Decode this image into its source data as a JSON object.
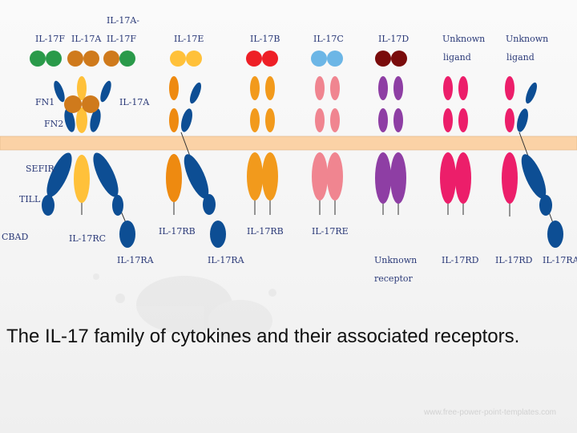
{
  "colors": {
    "green": "#2a9a4a",
    "il17a_orange": "#cf7a1c",
    "yellow": "#ffc13a",
    "orange": "#ee8a10",
    "orange_bright": "#f29a1c",
    "red": "#ee1f26",
    "light_blue": "#6cb6e6",
    "dark_red": "#7a0c0c",
    "pink": "#f08590",
    "purple": "#8e3ea4",
    "magenta": "#ec1e6a",
    "navy": "#0d4e94",
    "membrane": "#fbd2a6"
  },
  "labels": {
    "il17f_left": "IL-17F",
    "il17a_top": "IL-17A",
    "il17af_line1": "IL-17A-",
    "il17af_line2": "IL-17F",
    "il17e": "IL-17E",
    "il17b": "IL-17B",
    "il17c": "IL-17C",
    "il17d": "IL-17D",
    "unknown_ligand1_line1": "Unknown",
    "unknown_ligand1_line2": "ligand",
    "unknown_ligand2_line1": "Unknown",
    "unknown_ligand2_line2": "ligand",
    "fn1": "FN1",
    "fn2": "FN2",
    "il17a_side": "IL-17A",
    "sefir": "SEFIR",
    "till": "TILL",
    "cbad": "CBAD",
    "il17rc": "IL-17RC",
    "il17ra_1": "IL-17RA",
    "il17rb_1": "IL-17RB",
    "il17ra_2": "IL-17RA",
    "il17rb_2": "IL-17RB",
    "il17re": "IL-17RE",
    "unknown_receptor_line1": "Unknown",
    "unknown_receptor_line2": "receptor",
    "il17rd_1": "IL-17RD",
    "il17rd_2": "IL-17RD",
    "il17ra_3": "IL-17RA"
  },
  "caption": "The IL-17 family of cytokines and their associated receptors.",
  "watermark": "www.free-power-point-templates.com"
}
